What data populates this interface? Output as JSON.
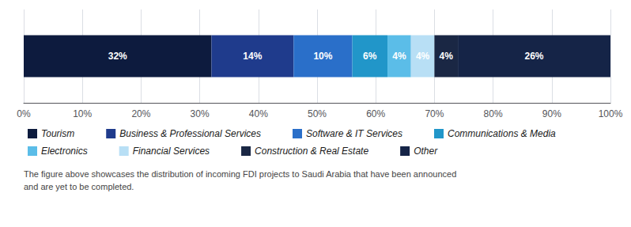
{
  "chart_data": {
    "type": "bar",
    "orientation": "horizontal",
    "stacked": true,
    "categories": [
      null
    ],
    "series": [
      {
        "name": "Tourism",
        "color": "#0d1b3e",
        "values": [
          32
        ],
        "value_labels": [
          "32%"
        ]
      },
      {
        "name": "Business & Professional Services",
        "color": "#1f3b8c",
        "values": [
          14
        ],
        "value_labels": [
          "14%"
        ]
      },
      {
        "name": "Software & IT Services",
        "color": "#2a6fc9",
        "values": [
          10
        ],
        "value_labels": [
          "10%"
        ]
      },
      {
        "name": "Communications & Media",
        "color": "#2196c9",
        "values": [
          6
        ],
        "value_labels": [
          "6%"
        ]
      },
      {
        "name": "Electronics",
        "color": "#5bbde8",
        "values": [
          4
        ],
        "value_labels": [
          "4%"
        ]
      },
      {
        "name": "Financial Services",
        "color": "#b8dff5",
        "values": [
          4
        ],
        "value_labels": [
          "4%"
        ]
      },
      {
        "name": "Construction & Real Estate",
        "color": "#1a2744",
        "values": [
          4
        ],
        "value_labels": [
          "4%"
        ]
      },
      {
        "name": "Other",
        "color": "#152447",
        "values": [
          26
        ],
        "value_labels": [
          "26%"
        ]
      }
    ],
    "data_labels": true,
    "xlim": [
      0,
      100
    ],
    "xticks": [
      {
        "value": 0,
        "label": "0%"
      },
      {
        "value": 10,
        "label": "10%"
      },
      {
        "value": 20,
        "label": "20%"
      },
      {
        "value": 30,
        "label": "30%"
      },
      {
        "value": 40,
        "label": "40%"
      },
      {
        "value": 50,
        "label": "50%"
      },
      {
        "value": 60,
        "label": "60%"
      },
      {
        "value": 70,
        "label": "70%"
      },
      {
        "value": 80,
        "label": "80%"
      },
      {
        "value": 90,
        "label": "90%"
      },
      {
        "value": 100,
        "label": "100%"
      }
    ],
    "grid": true,
    "tick_labels": "x",
    "legend": "bottom",
    "annotations": [
      "The figure above showcases the distribution of incoming FDI projects to Saudi Arabia that have been announced\nand are yet to be completed."
    ]
  }
}
